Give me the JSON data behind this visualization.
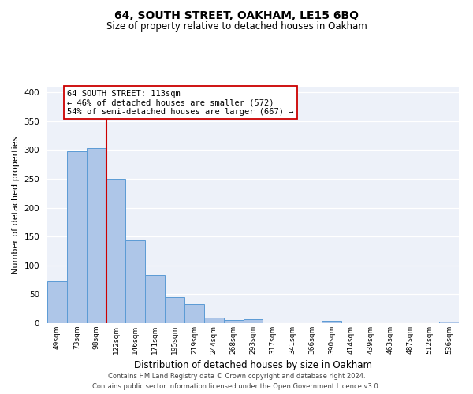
{
  "title": "64, SOUTH STREET, OAKHAM, LE15 6BQ",
  "subtitle": "Size of property relative to detached houses in Oakham",
  "xlabel": "Distribution of detached houses by size in Oakham",
  "ylabel": "Number of detached properties",
  "bin_labels": [
    "49sqm",
    "73sqm",
    "98sqm",
    "122sqm",
    "146sqm",
    "171sqm",
    "195sqm",
    "219sqm",
    "244sqm",
    "268sqm",
    "293sqm",
    "317sqm",
    "341sqm",
    "366sqm",
    "390sqm",
    "414sqm",
    "439sqm",
    "463sqm",
    "487sqm",
    "512sqm",
    "536sqm"
  ],
  "bin_values": [
    73,
    298,
    304,
    250,
    143,
    83,
    45,
    33,
    10,
    6,
    7,
    0,
    0,
    0,
    4,
    0,
    0,
    0,
    0,
    0,
    3
  ],
  "bar_color": "#aec6e8",
  "bar_edge_color": "#5b9bd5",
  "vline_color": "#cc0000",
  "annotation_text": "64 SOUTH STREET: 113sqm\n← 46% of detached houses are smaller (572)\n54% of semi-detached houses are larger (667) →",
  "annotation_box_color": "white",
  "annotation_box_edge_color": "#cc0000",
  "ylim": [
    0,
    410
  ],
  "yticks": [
    0,
    50,
    100,
    150,
    200,
    250,
    300,
    350,
    400
  ],
  "bg_color": "#edf1f9",
  "grid_color": "#ffffff",
  "footer_line1": "Contains HM Land Registry data © Crown copyright and database right 2024.",
  "footer_line2": "Contains public sector information licensed under the Open Government Licence v3.0."
}
